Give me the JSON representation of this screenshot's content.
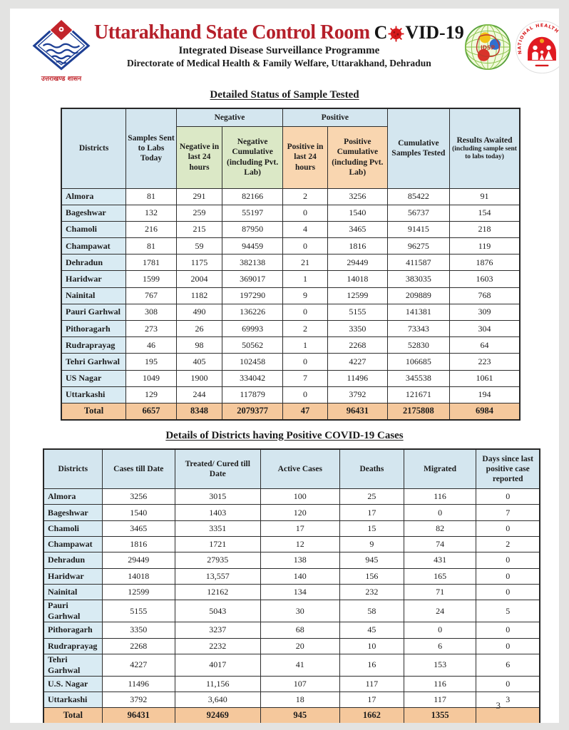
{
  "header": {
    "org_title": "Uttarakhand State Control Room",
    "covid_c": "C",
    "covid_rest": "VID-19",
    "programme": "Integrated Disease Surveillance Programme",
    "directorate": "Directorate of Medical Health & Family Welfare, Uttarakhand, Dehradun",
    "state_emblem_caption": "उत्तराखण्ड शासन",
    "idsp_logo_text": "IDSP",
    "nhm_ring_text": "NATIONAL HEALTH MISSION"
  },
  "colors": {
    "title_red": "#b5202a",
    "header_blue": "#d4e6ef",
    "negative_green": "#dbe8c6",
    "positive_orange": "#f9d6b0",
    "total_row_orange": "#f5c89c",
    "virus_red": "#d7191c"
  },
  "samples_section": {
    "heading": "Detailed Status of Sample Tested",
    "table": {
      "headers": {
        "districts": "Districts",
        "samples_sent": "Samples Sent to Labs Today",
        "negative_group": "Negative",
        "positive_group": "Positive",
        "neg_24": "Negative in last 24 hours",
        "neg_cum": "Negative Cumulative (including Pvt. Lab)",
        "pos_24": "Positive in last 24 hours",
        "pos_cum": "Positive Cumulative (including Pvt. Lab)",
        "cumulative_tested": "Cumulative Samples Tested",
        "results_awaited": "Results Awaited",
        "results_awaited_note": "(including sample sent to labs today)"
      },
      "rows": [
        {
          "district": "Almora",
          "values": [
            "81",
            "291",
            "82166",
            "2",
            "3256",
            "85422",
            "91"
          ]
        },
        {
          "district": "Bageshwar",
          "values": [
            "132",
            "259",
            "55197",
            "0",
            "1540",
            "56737",
            "154"
          ]
        },
        {
          "district": "Chamoli",
          "values": [
            "216",
            "215",
            "87950",
            "4",
            "3465",
            "91415",
            "218"
          ]
        },
        {
          "district": "Champawat",
          "values": [
            "81",
            "59",
            "94459",
            "0",
            "1816",
            "96275",
            "119"
          ]
        },
        {
          "district": "Dehradun",
          "values": [
            "1781",
            "1175",
            "382138",
            "21",
            "29449",
            "411587",
            "1876"
          ]
        },
        {
          "district": "Haridwar",
          "values": [
            "1599",
            "2004",
            "369017",
            "1",
            "14018",
            "383035",
            "1603"
          ]
        },
        {
          "district": "Nainital",
          "values": [
            "767",
            "1182",
            "197290",
            "9",
            "12599",
            "209889",
            "768"
          ]
        },
        {
          "district": "Pauri Garhwal",
          "values": [
            "308",
            "490",
            "136226",
            "0",
            "5155",
            "141381",
            "309"
          ]
        },
        {
          "district": "Pithoragarh",
          "values": [
            "273",
            "26",
            "69993",
            "2",
            "3350",
            "73343",
            "304"
          ]
        },
        {
          "district": "Rudraprayag",
          "values": [
            "46",
            "98",
            "50562",
            "1",
            "2268",
            "52830",
            "64"
          ]
        },
        {
          "district": "Tehri Garhwal",
          "values": [
            "195",
            "405",
            "102458",
            "0",
            "4227",
            "106685",
            "223"
          ]
        },
        {
          "district": "US Nagar",
          "values": [
            "1049",
            "1900",
            "334042",
            "7",
            "11496",
            "345538",
            "1061"
          ]
        },
        {
          "district": "Uttarkashi",
          "values": [
            "129",
            "244",
            "117879",
            "0",
            "3792",
            "121671",
            "194"
          ]
        }
      ],
      "total": {
        "label": "Total",
        "values": [
          "6657",
          "8348",
          "2079377",
          "47",
          "96431",
          "2175808",
          "6984"
        ]
      }
    }
  },
  "positive_section": {
    "heading": "Details of Districts having Positive COVID-19 Cases",
    "table": {
      "headers": [
        "Districts",
        "Cases till Date",
        "Treated/ Cured till Date",
        "Active Cases",
        "Deaths",
        "Migrated",
        "Days since last positive case reported"
      ],
      "rows": [
        {
          "district": "Almora",
          "values": [
            "3256",
            "3015",
            "100",
            "25",
            "116",
            "0"
          ]
        },
        {
          "district": "Bageshwar",
          "values": [
            "1540",
            "1403",
            "120",
            "17",
            "0",
            "7"
          ]
        },
        {
          "district": "Chamoli",
          "values": [
            "3465",
            "3351",
            "17",
            "15",
            "82",
            "0"
          ]
        },
        {
          "district": "Champawat",
          "values": [
            "1816",
            "1721",
            "12",
            "9",
            "74",
            "2"
          ]
        },
        {
          "district": "Dehradun",
          "values": [
            "29449",
            "27935",
            "138",
            "945",
            "431",
            "0"
          ]
        },
        {
          "district": "Haridwar",
          "values": [
            "14018",
            "13,557",
            "140",
            "156",
            "165",
            "0"
          ]
        },
        {
          "district": "Nainital",
          "values": [
            "12599",
            "12162",
            "134",
            "232",
            "71",
            "0"
          ]
        },
        {
          "district": "Pauri Garhwal",
          "values": [
            "5155",
            "5043",
            "30",
            "58",
            "24",
            "5"
          ]
        },
        {
          "district": "Pithoragarh",
          "values": [
            "3350",
            "3237",
            "68",
            "45",
            "0",
            "0"
          ]
        },
        {
          "district": "Rudraprayag",
          "values": [
            "2268",
            "2232",
            "20",
            "10",
            "6",
            "0"
          ]
        },
        {
          "district": "Tehri Garhwal",
          "values": [
            "4227",
            "4017",
            "41",
            "16",
            "153",
            "6"
          ]
        },
        {
          "district": "U.S. Nagar",
          "values": [
            "11496",
            "11,156",
            "107",
            "117",
            "116",
            "0"
          ]
        },
        {
          "district": "Uttarkashi",
          "values": [
            "3792",
            "3,640",
            "18",
            "17",
            "117",
            "3"
          ]
        }
      ],
      "total": {
        "label": "Total",
        "values": [
          "96431",
          "92469",
          "945",
          "1662",
          "1355",
          ""
        ]
      }
    }
  },
  "page_number": "3"
}
